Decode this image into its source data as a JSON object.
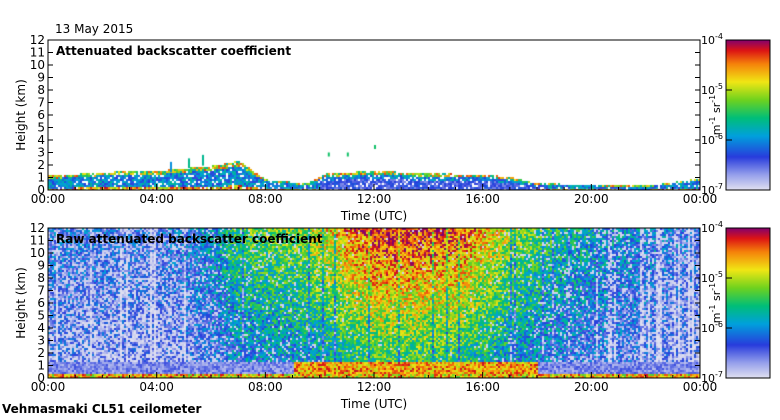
{
  "header": {
    "date": "13 May 2015"
  },
  "footer": {
    "instrument": "Vehmasmaki CL51 ceilometer"
  },
  "chart_data": [
    {
      "type": "heatmap",
      "title": "Attenuated backscatter coefficient",
      "xlabel": "Time (UTC)",
      "ylabel": "Height (km)",
      "x_ticks": [
        "00:00",
        "04:00",
        "08:00",
        "12:00",
        "16:00",
        "20:00",
        "00:00"
      ],
      "x_range_hours": [
        0,
        24
      ],
      "y_ticks": [
        "0",
        "1",
        "2",
        "3",
        "4",
        "5",
        "6",
        "7",
        "8",
        "9",
        "10",
        "11",
        "12"
      ],
      "ylim": [
        0,
        12
      ],
      "colorbar": {
        "scale": "log",
        "range": [
          1e-07,
          0.0001
        ],
        "tick_labels": [
          "10",
          "10",
          "10",
          "10"
        ],
        "tick_exponents": [
          "-7",
          "-6",
          "-5",
          "-4"
        ],
        "label": "m",
        "label_exp1": "-1",
        "label_mid": " sr",
        "label_exp2": "-1"
      },
      "signal_layer": [
        {
          "hour": 0,
          "top_km": 1.2
        },
        {
          "hour": 2,
          "top_km": 1.5
        },
        {
          "hour": 4,
          "top_km": 1.6
        },
        {
          "hour": 6,
          "top_km": 2.0
        },
        {
          "hour": 7,
          "top_km": 2.4
        },
        {
          "hour": 8,
          "top_km": 0.9
        },
        {
          "hour": 9.5,
          "top_km": 0.6
        },
        {
          "hour": 10.2,
          "top_km": 1.4
        },
        {
          "hour": 12,
          "top_km": 1.6
        },
        {
          "hour": 14,
          "top_km": 1.4
        },
        {
          "hour": 16,
          "top_km": 1.3
        },
        {
          "hour": 17,
          "top_km": 1.1
        },
        {
          "hour": 18,
          "top_km": 0.6
        },
        {
          "hour": 20,
          "top_km": 0.5
        },
        {
          "hour": 22,
          "top_km": 0.4
        },
        {
          "hour": 24,
          "top_km": 1.0
        }
      ]
    },
    {
      "type": "heatmap",
      "title": "Raw attenuated backscatter coefficient",
      "xlabel": "Time (UTC)",
      "ylabel": "Height (km)",
      "x_ticks": [
        "00:00",
        "04:00",
        "08:00",
        "12:00",
        "16:00",
        "20:00",
        "00:00"
      ],
      "x_range_hours": [
        0,
        24
      ],
      "y_ticks": [
        "0",
        "1",
        "2",
        "3",
        "4",
        "5",
        "6",
        "7",
        "8",
        "9",
        "10",
        "11",
        "12"
      ],
      "ylim": [
        0,
        12
      ],
      "colorbar": {
        "scale": "log",
        "range": [
          1e-07,
          0.0001
        ],
        "tick_labels": [
          "10",
          "10",
          "10",
          "10"
        ],
        "tick_exponents": [
          "-7",
          "-6",
          "-5",
          "-4"
        ],
        "label": "m",
        "label_exp1": "-1",
        "label_mid": " sr",
        "label_exp2": "-1"
      },
      "noise_intensity": [
        {
          "hour": 0,
          "level": 0.25
        },
        {
          "hour": 4,
          "level": 0.2
        },
        {
          "hour": 6,
          "level": 0.35
        },
        {
          "hour": 7,
          "level": 0.55
        },
        {
          "hour": 9,
          "level": 0.6
        },
        {
          "hour": 10,
          "level": 0.7
        },
        {
          "hour": 12,
          "level": 0.95
        },
        {
          "hour": 15,
          "level": 0.9
        },
        {
          "hour": 17,
          "level": 0.65
        },
        {
          "hour": 19,
          "level": 0.45
        },
        {
          "hour": 21,
          "level": 0.35
        },
        {
          "hour": 24,
          "level": 0.2
        }
      ]
    }
  ]
}
